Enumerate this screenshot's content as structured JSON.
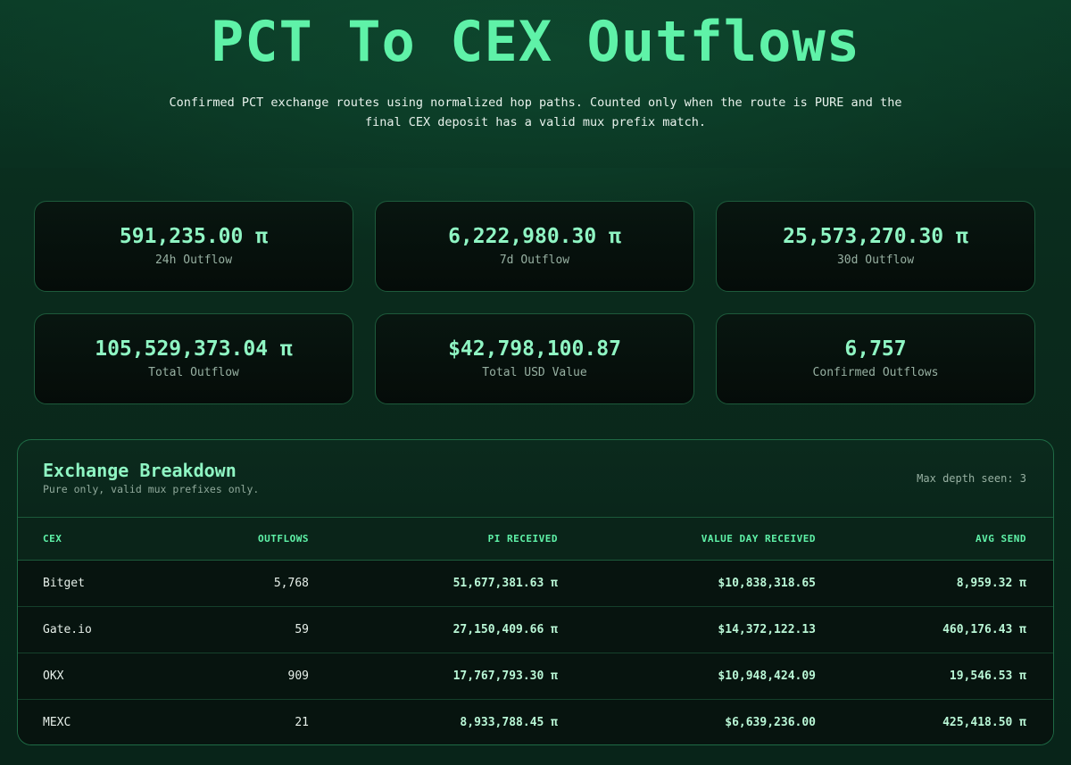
{
  "hero": {
    "title": "PCT To CEX Outflows",
    "description": "Confirmed PCT exchange routes using normalized hop paths. Counted only when the route is PURE and the final CEX deposit has a valid mux prefix match."
  },
  "stats": [
    {
      "value": "591,235.00 π",
      "label": "24h Outflow"
    },
    {
      "value": "6,222,980.30 π",
      "label": "7d Outflow"
    },
    {
      "value": "25,573,270.30 π",
      "label": "30d Outflow"
    },
    {
      "value": "105,529,373.04 π",
      "label": "Total Outflow"
    },
    {
      "value": "$42,798,100.87",
      "label": "Total USD Value"
    },
    {
      "value": "6,757",
      "label": "Confirmed Outflows"
    }
  ],
  "breakdown": {
    "title": "Exchange Breakdown",
    "subtitle": "Pure only, valid mux prefixes only.",
    "max_depth": "Max depth seen: 3",
    "columns": [
      "CEX",
      "OUTFLOWS",
      "PI RECEIVED",
      "VALUE DAY RECEIVED",
      "AVG SEND"
    ],
    "rows": [
      {
        "cex": "Bitget",
        "outflows": "5,768",
        "pi_received": "51,677,381.63 π",
        "value_day": "$10,838,318.65",
        "avg_send": "8,959.32 π"
      },
      {
        "cex": "Gate.io",
        "outflows": "59",
        "pi_received": "27,150,409.66 π",
        "value_day": "$14,372,122.13",
        "avg_send": "460,176.43 π"
      },
      {
        "cex": "OKX",
        "outflows": "909",
        "pi_received": "17,767,793.30 π",
        "value_day": "$10,948,424.09",
        "avg_send": "19,546.53 π"
      },
      {
        "cex": "MEXC",
        "outflows": "21",
        "pi_received": "8,933,788.45 π",
        "value_day": "$6,639,236.00",
        "avg_send": "425,418.50 π"
      }
    ]
  }
}
